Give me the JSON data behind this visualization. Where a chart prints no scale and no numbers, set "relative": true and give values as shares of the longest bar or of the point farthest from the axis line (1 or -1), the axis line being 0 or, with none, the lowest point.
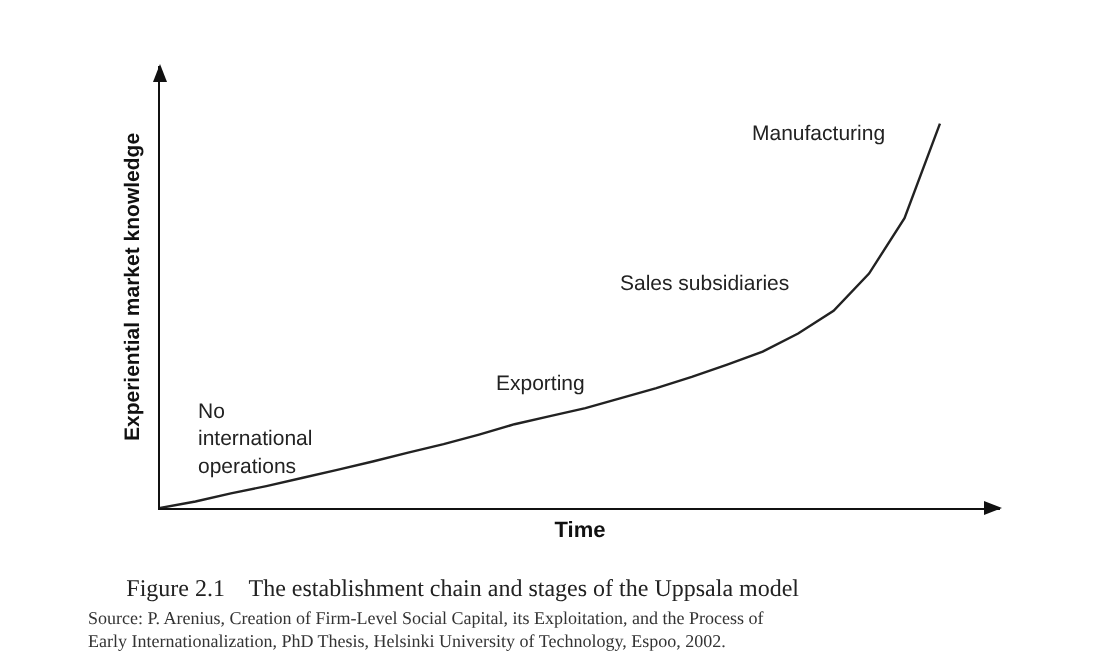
{
  "chart_data": {
    "type": "line",
    "relative": true,
    "title": "Figure 2.1    The establishment chain and stages of the Uppsala model",
    "xlabel": "Time",
    "ylabel": "Experiential market knowledge",
    "categories": [
      null,
      null,
      null,
      null,
      null,
      null,
      null,
      null,
      null,
      null,
      null,
      null,
      null,
      null,
      null,
      null,
      null,
      null,
      null,
      null,
      null,
      null,
      null
    ],
    "series": [
      {
        "color": "#222222",
        "values": [
          0,
          0.017,
          0.038,
          0.057,
          0.078,
          0.099,
          0.121,
          0.144,
          0.166,
          0.191,
          0.218,
          0.239,
          0.26,
          0.286,
          0.312,
          0.341,
          0.373,
          0.407,
          0.454,
          0.513,
          0.61,
          0.754,
          1
        ]
      }
    ],
    "annotations": [
      "No\ninternational\noperations",
      "Exporting",
      "Sales subsidiaries",
      "Manufacturing",
      "Source: P. Arenius, Creation of Firm-Level Social Capital, its Exploitation, and the Process of Early Internationalization, PhD Thesis, Helsinki University of Technology, Espoo, 2002."
    ],
    "grid": false,
    "marker": "none",
    "line_style": "solid"
  }
}
